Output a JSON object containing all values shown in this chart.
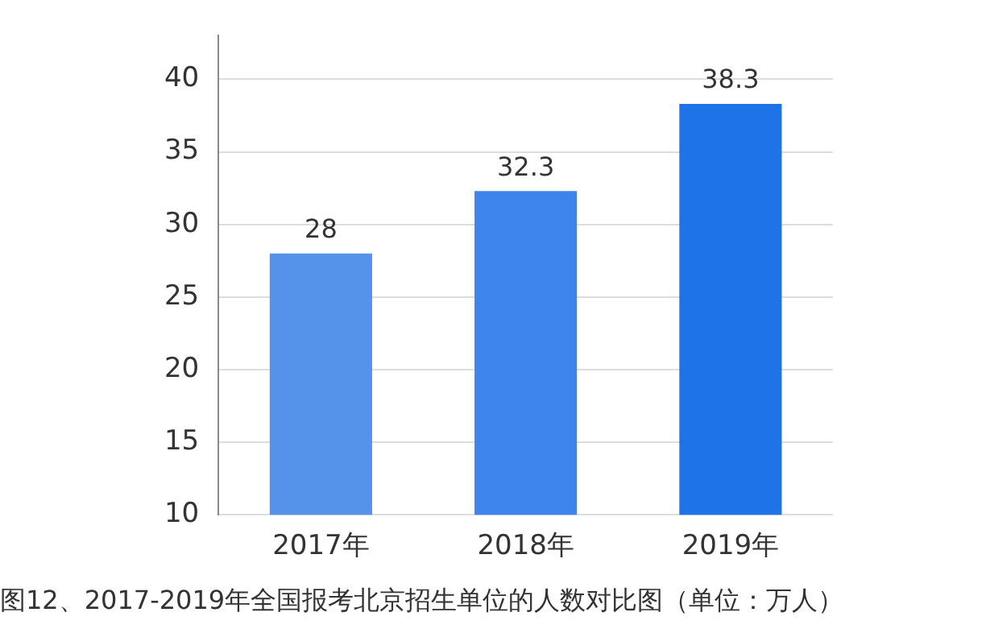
{
  "chart_data": {
    "type": "bar",
    "categories": [
      "2017年",
      "2018年",
      "2019年"
    ],
    "values": [
      28,
      32.3,
      38.3
    ],
    "colors": [
      "#5592ea",
      "#3d84ec",
      "#1e73e8"
    ],
    "ylim": [
      10,
      43
    ],
    "yticks": [
      10,
      15,
      20,
      25,
      30,
      35,
      40
    ],
    "grid": "y",
    "data_labels": true,
    "annotations": [
      "图12、2017-2019年全国报考北京招生单位的人数对比图（单位：万人）"
    ]
  }
}
